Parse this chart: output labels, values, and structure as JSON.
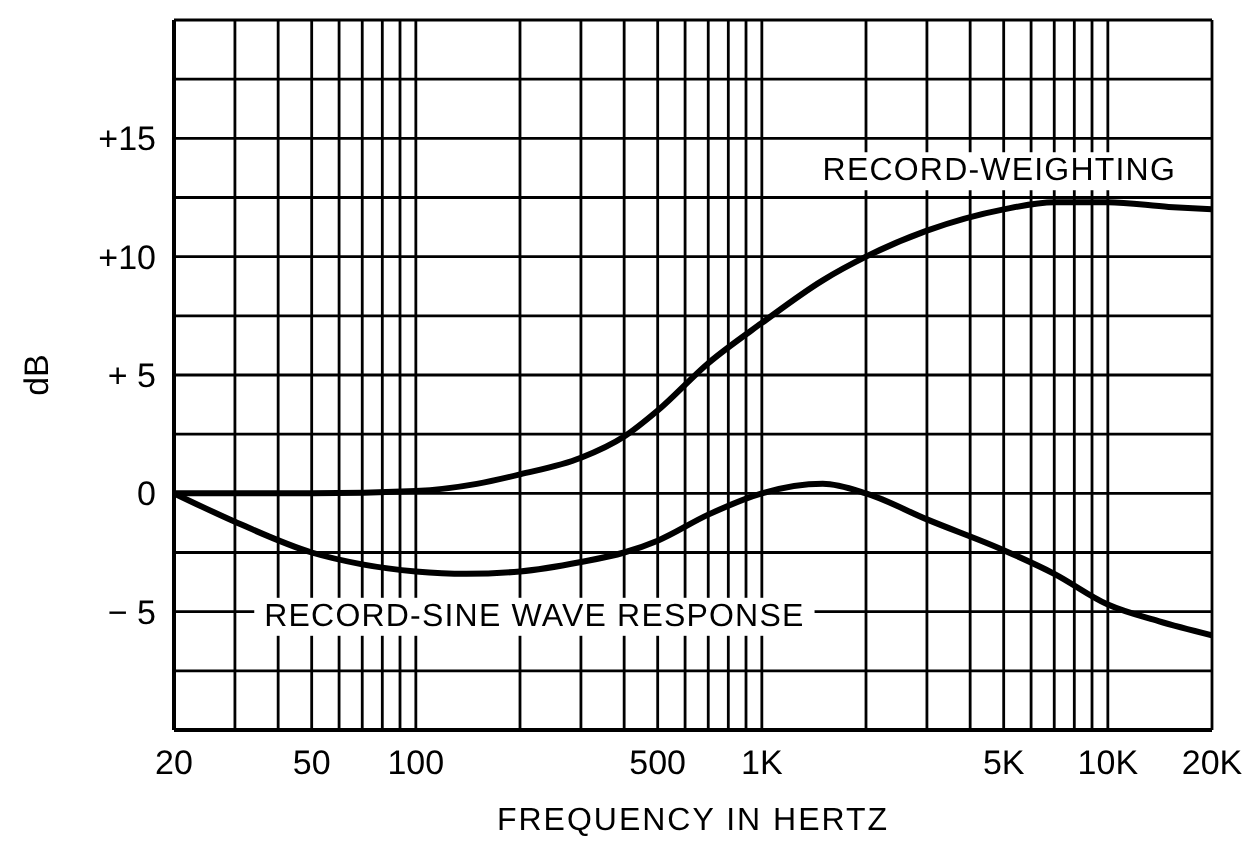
{
  "chart_data": {
    "type": "line",
    "xlabel": "FREQUENCY IN HERTZ",
    "ylabel": "dB",
    "log": "x",
    "xlim": [
      20,
      20000
    ],
    "ylim": [
      -10,
      20
    ],
    "xticks": [
      20,
      {
        "value": 30,
        "label": null
      },
      {
        "value": 40,
        "label": null
      },
      50,
      {
        "value": 60,
        "label": null
      },
      {
        "value": 70,
        "label": null
      },
      {
        "value": 80,
        "label": null
      },
      {
        "value": 90,
        "label": null
      },
      100,
      {
        "value": 200,
        "label": null
      },
      {
        "value": 300,
        "label": null
      },
      {
        "value": 400,
        "label": null
      },
      500,
      {
        "value": 600,
        "label": null
      },
      {
        "value": 700,
        "label": null
      },
      {
        "value": 800,
        "label": null
      },
      {
        "value": 900,
        "label": null
      },
      {
        "value": 1000,
        "label": "1K"
      },
      {
        "value": 2000,
        "label": null
      },
      {
        "value": 3000,
        "label": null
      },
      {
        "value": 4000,
        "label": null
      },
      {
        "value": 5000,
        "label": "5K"
      },
      {
        "value": 6000,
        "label": null
      },
      {
        "value": 7000,
        "label": null
      },
      {
        "value": 8000,
        "label": null
      },
      {
        "value": 9000,
        "label": null
      },
      {
        "value": 10000,
        "label": "10K"
      },
      {
        "value": 20000,
        "label": "20K"
      }
    ],
    "yticks": [
      {
        "value": -10,
        "label": null
      },
      {
        "value": -7.5,
        "label": null
      },
      {
        "value": -5,
        "label": "− 5"
      },
      {
        "value": -2.5,
        "label": null
      },
      0,
      {
        "value": 2.5,
        "label": null
      },
      {
        "value": 5,
        "label": "+ 5"
      },
      {
        "value": 7.5,
        "label": null
      },
      {
        "value": 10,
        "label": "+10"
      },
      {
        "value": 12.5,
        "label": null
      },
      {
        "value": 15,
        "label": "+15"
      },
      {
        "value": 17.5,
        "label": null
      },
      {
        "value": 20,
        "label": null
      }
    ],
    "grid": true,
    "marker": "none",
    "line_style": "solid",
    "series": [
      {
        "name": "RECORD-WEIGHTING",
        "color": "#000000",
        "x": [
          20,
          50,
          100,
          150,
          200,
          300,
          400,
          500,
          700,
          1000,
          1500,
          2000,
          3000,
          5000,
          7000,
          10000,
          15000,
          20000
        ],
        "values": [
          0,
          0,
          0.1,
          0.4,
          0.8,
          1.5,
          2.4,
          3.5,
          5.5,
          7.2,
          9.0,
          10.0,
          11.1,
          12.0,
          12.3,
          12.3,
          12.1,
          12.0
        ]
      },
      {
        "name": "RECORD-SINE WAVE RESPONSE",
        "color": "#000000",
        "x": [
          20,
          30,
          50,
          70,
          100,
          140,
          200,
          300,
          400,
          500,
          700,
          1000,
          1500,
          2000,
          3000,
          5000,
          7000,
          10000,
          14000,
          20000
        ],
        "values": [
          0,
          -1.2,
          -2.5,
          -3.0,
          -3.3,
          -3.4,
          -3.3,
          -2.9,
          -2.5,
          -2.0,
          -0.9,
          0,
          0.4,
          0,
          -1.1,
          -2.4,
          -3.4,
          -4.7,
          -5.4,
          -6.0
        ]
      }
    ]
  }
}
